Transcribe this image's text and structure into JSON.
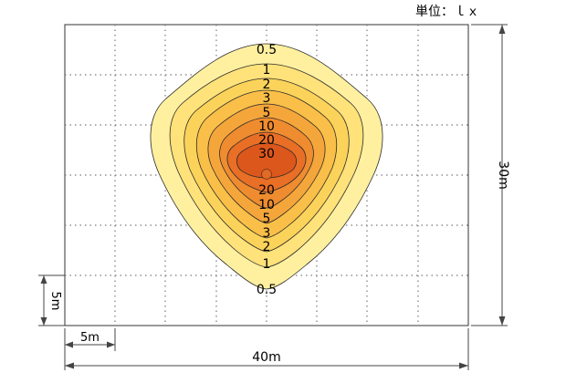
{
  "unit_label": "単位：ｌｘ",
  "dimensions": {
    "width_label": "40m",
    "height_label": "30m",
    "grid_width_label": "5m",
    "grid_height_label": "5m"
  },
  "colors": {
    "frame": "#333333",
    "grid": "#7a7a7a",
    "levels": [
      "#fff0a0",
      "#ffe27a",
      "#fcd35a",
      "#f9bf48",
      "#f5a63b",
      "#ef8c2f",
      "#e86f25",
      "#dc571c"
    ]
  },
  "contour_levels": [
    "0.5",
    "1",
    "2",
    "3",
    "5",
    "10",
    "20",
    "30"
  ],
  "labels_north": [
    "0.5",
    "1",
    "2",
    "3",
    "5",
    "10",
    "20",
    "30"
  ],
  "labels_south": [
    "20",
    "10",
    "5",
    "3",
    "2",
    "1",
    "0.5"
  ]
}
